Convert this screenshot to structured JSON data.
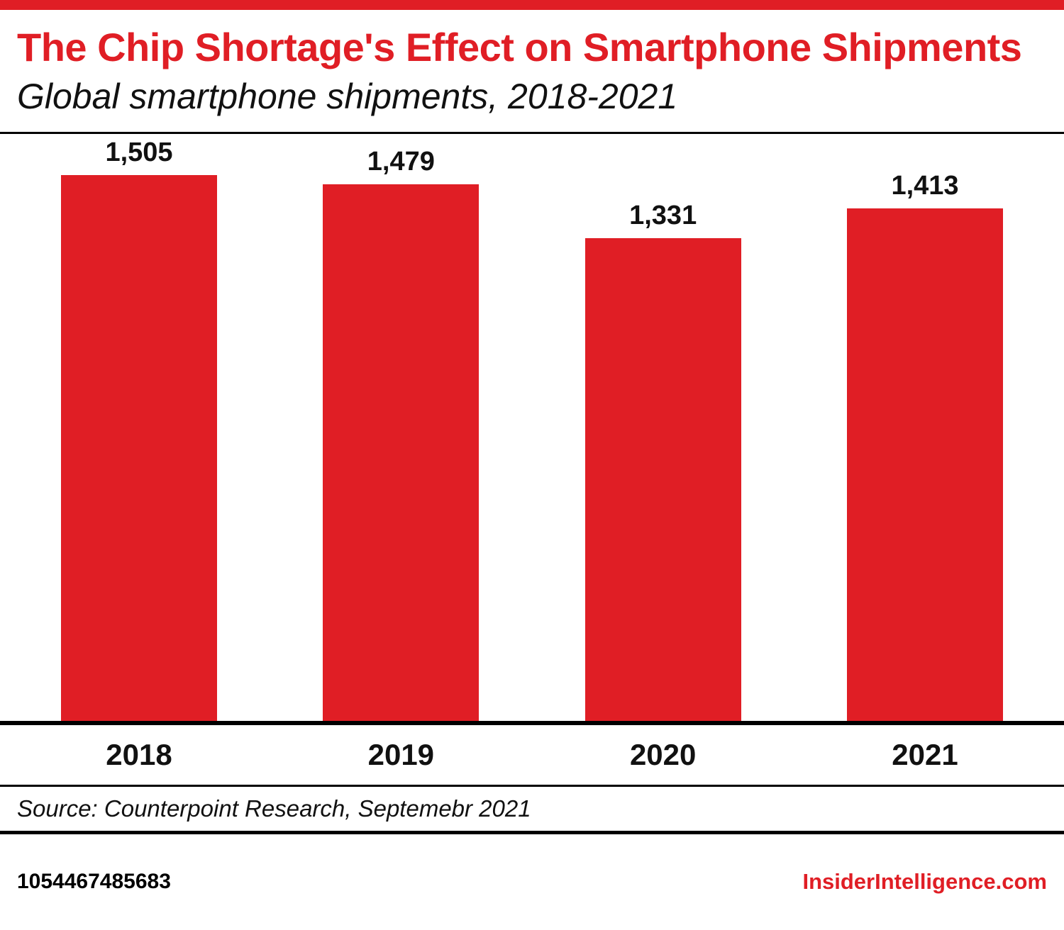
{
  "header": {
    "title": "The Chip Shortage's Effect on Smartphone Shipments",
    "subtitle": "Global smartphone shipments, 2018-2021"
  },
  "chart_data": {
    "type": "bar",
    "title": "The Chip Shortage's Effect on Smartphone Shipments",
    "subtitle": "Global smartphone shipments, 2018-2021",
    "categories": [
      "2018",
      "2019",
      "2020",
      "2021"
    ],
    "values": [
      1505,
      1479,
      1331,
      1413
    ],
    "value_labels": [
      "1,505",
      "1,479",
      "1,331",
      "1,413"
    ],
    "xlabel": "",
    "ylabel": "",
    "ylim": [
      0,
      1600
    ],
    "grid": false,
    "legend": "none",
    "bar_color": "#e01e25"
  },
  "footer": {
    "source": "Source: Counterpoint Research, Septemebr 2021",
    "id_number": "1054467485683",
    "site": "InsiderIntelligence.com"
  },
  "colors": {
    "accent_red": "#e01e25",
    "text_black": "#111111"
  }
}
